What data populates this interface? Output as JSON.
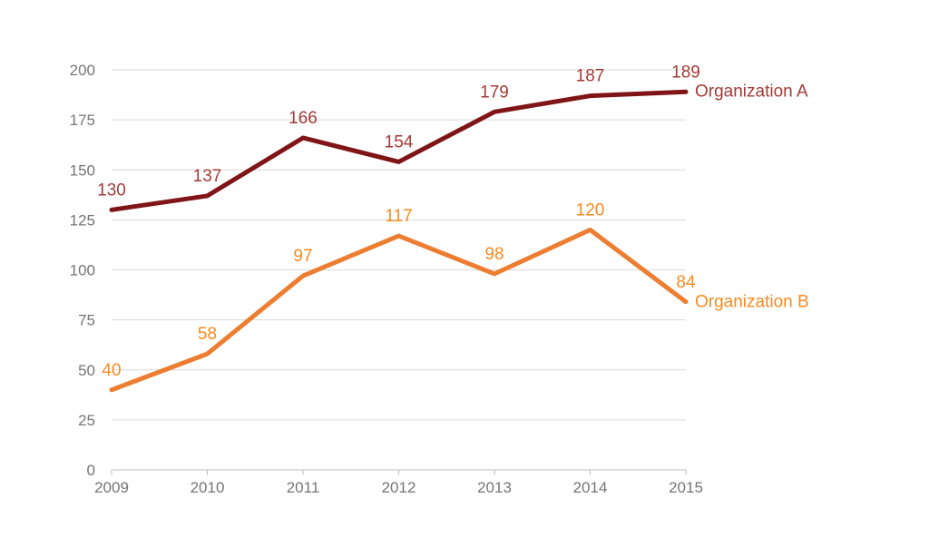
{
  "chart_data": {
    "type": "line",
    "title": "",
    "xlabel": "",
    "ylabel": "",
    "categories": [
      "2009",
      "2010",
      "2011",
      "2012",
      "2013",
      "2014",
      "2015"
    ],
    "series": [
      {
        "name": "Organization A",
        "values": [
          130,
          137,
          166,
          154,
          179,
          187,
          189
        ],
        "line_color": "#7F1517",
        "label_color": "#A43A36"
      },
      {
        "name": "Organization B",
        "values": [
          40,
          58,
          97,
          117,
          98,
          120,
          84
        ],
        "line_color": "#ED7D31",
        "label_color": "#F88A1D"
      }
    ],
    "ylim": [
      0,
      200
    ],
    "y_step": 25,
    "y_tick_labels": [
      "0",
      "25",
      "50",
      "75",
      "100",
      "125",
      "150",
      "175",
      "200"
    ],
    "grid": true,
    "legend_position": "right-of-line-end",
    "data_labels": "above-points",
    "colors": {
      "background": "#ffffff",
      "axis_text": "#757575",
      "gridline": "#D9D9D9",
      "axis_line": "#BFBFBF"
    }
  }
}
